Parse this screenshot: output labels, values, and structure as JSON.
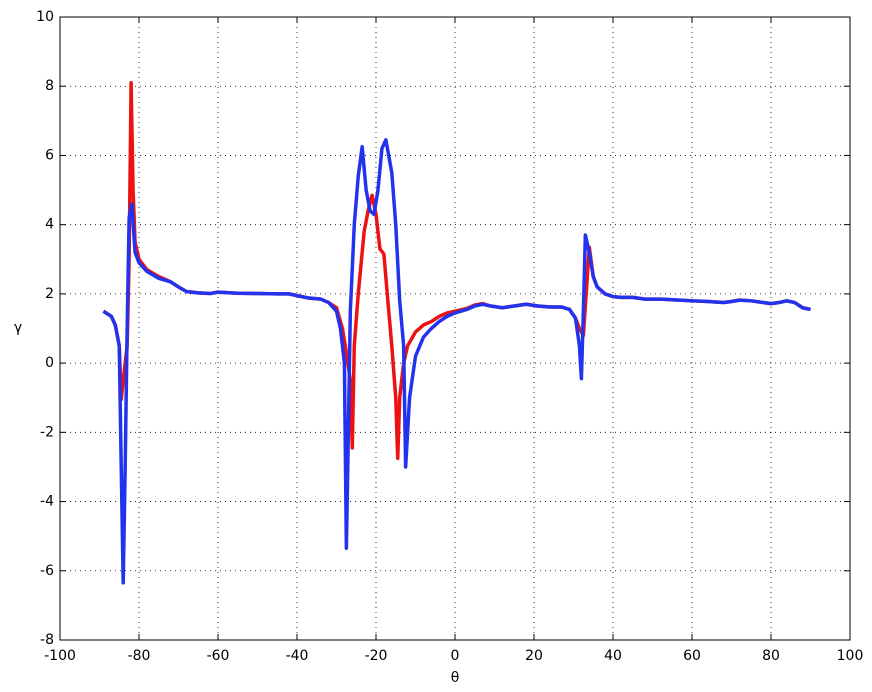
{
  "chart_data": {
    "type": "line",
    "x_label": "θ",
    "y_label": "γ",
    "xlim": [
      -100,
      100
    ],
    "xticks": [
      -100,
      -80,
      -60,
      -40,
      -20,
      0,
      20,
      40,
      60,
      80,
      100
    ],
    "ylim": [
      -8,
      10
    ],
    "yticks": [
      -8,
      -6,
      -4,
      -2,
      0,
      2,
      4,
      6,
      8,
      10
    ],
    "grid": true,
    "series": [
      {
        "color": "#ee1111",
        "x": [
          -89,
          -87,
          -86,
          -85,
          -84.5,
          -84,
          -83,
          -82.5,
          -82,
          -81.5,
          -81,
          -80,
          -78,
          -75,
          -72,
          -70,
          -68,
          -65,
          -62,
          -60,
          -55,
          -50,
          -45,
          -42,
          -40,
          -37,
          -34,
          -32,
          -30,
          -28.5,
          -27.5,
          -26.5,
          -26,
          -25.5,
          -24.5,
          -23,
          -22,
          -21,
          -20,
          -19,
          -18,
          -17,
          -16,
          -15,
          -14.5,
          -14,
          -13,
          -12,
          -10,
          -8,
          -6,
          -4,
          -2,
          0,
          3,
          5,
          7,
          9,
          12,
          15,
          18,
          21,
          24,
          27,
          29,
          30.5,
          31.5,
          32.5,
          33.5,
          34,
          35,
          36,
          38,
          40,
          42,
          45,
          48,
          52,
          55,
          60,
          64,
          68,
          70,
          72,
          75,
          78,
          80,
          82,
          84,
          86,
          88,
          90
        ],
        "values": [
          1.5,
          1.35,
          1.1,
          0.5,
          -1.05,
          -0.5,
          0.5,
          3,
          8.1,
          5,
          3.5,
          3.0,
          2.7,
          2.5,
          2.35,
          2.2,
          2.07,
          2.03,
          2.01,
          2.05,
          2.02,
          2.01,
          2.0,
          2.0,
          1.95,
          1.88,
          1.85,
          1.75,
          1.6,
          1,
          0.3,
          -0.5,
          -2.45,
          0.5,
          2,
          3.8,
          4.4,
          4.85,
          4.3,
          3.3,
          3.15,
          1.8,
          0.5,
          -1,
          -2.75,
          -1,
          0,
          0.5,
          0.9,
          1.1,
          1.2,
          1.35,
          1.45,
          1.5,
          1.58,
          1.68,
          1.72,
          1.65,
          1.6,
          1.65,
          1.7,
          1.65,
          1.62,
          1.62,
          1.55,
          1.3,
          1.0,
          0.8,
          2.5,
          3.35,
          2.5,
          2.2,
          2.0,
          1.92,
          1.9,
          1.9,
          1.85,
          1.85,
          1.83,
          1.8,
          1.78,
          1.75,
          1.78,
          1.82,
          1.8,
          1.75,
          1.72,
          1.75,
          1.8,
          1.75,
          1.6,
          1.55
        ]
      },
      {
        "color": "#2233ee",
        "x": [
          -89,
          -87,
          -86,
          -85,
          -84.5,
          -84,
          -83.5,
          -83,
          -82.5,
          -81.8,
          -81,
          -80,
          -78,
          -75,
          -72,
          -70,
          -68,
          -65,
          -62,
          -60,
          -55,
          -50,
          -45,
          -42,
          -40,
          -37,
          -34,
          -32,
          -30,
          -29,
          -28,
          -27.5,
          -27,
          -26.5,
          -25.5,
          -24.5,
          -23.5,
          -22.5,
          -21.5,
          -20.5,
          -19.5,
          -18.5,
          -17.5,
          -16,
          -15,
          -14,
          -13,
          -12.5,
          -11.5,
          -10,
          -8,
          -6,
          -4,
          -2,
          0,
          3,
          5,
          7,
          9,
          12,
          15,
          18,
          21,
          24,
          27,
          29,
          30.5,
          31.5,
          32,
          32.5,
          33,
          34,
          35,
          36,
          38,
          40,
          42,
          45,
          48,
          52,
          55,
          60,
          64,
          68,
          70,
          72,
          75,
          78,
          80,
          82,
          84,
          86,
          88,
          90
        ],
        "values": [
          1.5,
          1.35,
          1.1,
          0.5,
          -3,
          -6.35,
          -3,
          1,
          4.2,
          4.6,
          3.2,
          2.9,
          2.65,
          2.45,
          2.35,
          2.2,
          2.07,
          2.03,
          2.01,
          2.05,
          2.02,
          2.01,
          2.0,
          2.0,
          1.95,
          1.88,
          1.85,
          1.75,
          1.5,
          1,
          0,
          -5.35,
          -2,
          1.5,
          4,
          5.4,
          6.25,
          5,
          4.4,
          4.3,
          5,
          6.2,
          6.45,
          5.5,
          4,
          1.8,
          0.5,
          -3,
          -1,
          0.2,
          0.75,
          1.0,
          1.2,
          1.35,
          1.45,
          1.55,
          1.65,
          1.7,
          1.65,
          1.6,
          1.65,
          1.7,
          1.65,
          1.62,
          1.62,
          1.55,
          1.3,
          0.5,
          -0.45,
          1.5,
          3.7,
          3.2,
          2.5,
          2.2,
          2.0,
          1.92,
          1.9,
          1.9,
          1.85,
          1.85,
          1.83,
          1.8,
          1.78,
          1.75,
          1.78,
          1.82,
          1.8,
          1.75,
          1.72,
          1.75,
          1.8,
          1.75,
          1.6,
          1.55
        ]
      }
    ]
  }
}
